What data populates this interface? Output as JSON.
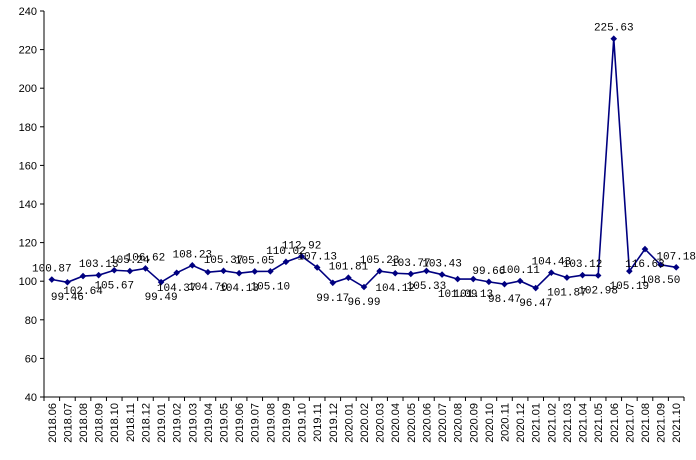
{
  "chart_data": {
    "type": "line",
    "title": "",
    "xlabel": "",
    "ylabel": "",
    "ylim": [
      40,
      240
    ],
    "yticks": [
      40,
      60,
      80,
      100,
      120,
      140,
      160,
      180,
      200,
      220,
      240
    ],
    "grid": false,
    "legend": "none",
    "line_color": "#000080",
    "categories": [
      "2018.06",
      "2018.07",
      "2018.08",
      "2018.09",
      "2018.10",
      "2018.11",
      "2018.12",
      "2019.01",
      "2019.02",
      "2019.03",
      "2019.04",
      "2019.05",
      "2019.06",
      "2019.07",
      "2019.08",
      "2019.09",
      "2019.10",
      "2019.11",
      "2019.12",
      "2020.01",
      "2020.02",
      "2020.03",
      "2020.04",
      "2020.05",
      "2020.06",
      "2020.07",
      "2020.08",
      "2020.09",
      "2020.10",
      "2020.11",
      "2020.12",
      "2021.01",
      "2021.02",
      "2021.03",
      "2021.04",
      "2021.05",
      "2021.06",
      "2021.07",
      "2021.08",
      "2021.09",
      "2021.10"
    ],
    "series": [
      {
        "values": [
          100.87,
          99.46,
          102.64,
          103.13,
          105.67,
          105.24,
          106.62,
          99.49,
          104.37,
          108.23,
          104.7,
          105.37,
          104.13,
          105.05,
          105.1,
          110.02,
          112.92,
          107.13,
          99.17,
          101.81,
          96.99,
          105.23,
          104.12,
          103.77,
          105.33,
          103.43,
          101.09,
          101.13,
          99.66,
          98.47,
          100.11,
          96.47,
          104.43,
          101.87,
          103.12,
          102.98,
          225.63,
          105.19,
          116.63,
          108.5,
          107.18
        ],
        "labels": [
          "100.87",
          "99.46",
          "102.64",
          "103.13",
          "105.67",
          "105.24",
          "106.62",
          "99.49",
          "104.37",
          "108.23",
          "104.70",
          "105.37",
          "104.13",
          "105.05",
          "105.10",
          "110.02",
          "112.92",
          "107.13",
          "99.17",
          "101.81",
          "96.99",
          "105.23",
          "104.12",
          "103.77",
          "105.33",
          "103.43",
          "101.09",
          "101.13",
          "99.66",
          "98.47",
          "100.11",
          "96.47",
          "104.43",
          "101.87",
          "103.12",
          "102.98",
          "225.63",
          "105.19",
          "116.63",
          "108.50",
          "107.18"
        ],
        "label_pos": [
          "above",
          "below",
          "below",
          "above",
          "below",
          "above",
          "above",
          "below",
          "below",
          "above",
          "below",
          "above",
          "below",
          "above",
          "below",
          "above",
          "above",
          "above",
          "below",
          "above",
          "below",
          "above",
          "below",
          "above",
          "below",
          "above",
          "below",
          "below",
          "above",
          "below",
          "above",
          "below",
          "above",
          "below",
          "above",
          "below",
          "above",
          "below",
          "below",
          "below",
          "above"
        ]
      }
    ]
  }
}
